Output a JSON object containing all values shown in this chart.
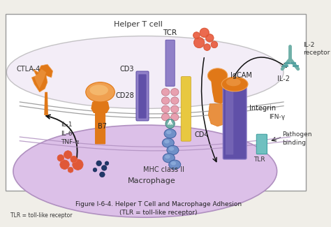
{
  "title": "Figure I-6-4. Helper T Cell and Macrophage Adhesion\n(TLR = toll-like receptor)",
  "tlr_note": "TLR = toll-like receptor",
  "bg_color": "#f0eee8",
  "border_color": "#aaaaaa",
  "helper_t_label": "Helper T cell",
  "macrophage_label": "Macrophage",
  "labels": {
    "CTLA4": "CTLA-4",
    "CD28": "CD28",
    "IL1": "IL-1\nIL-6\nTNF-α",
    "B7": "B7",
    "TCR": "TCR",
    "CD3": "CD3",
    "CD4": "CD4",
    "MHC": "MHC class II",
    "IgCAM": "IgCAM",
    "Integrin": "Integrin",
    "IFNg": "IFN-γ",
    "IL2": "IL-2",
    "IL2R": "IL-2\nreceptor",
    "TLR": "TLR",
    "PathogenBinding": "Pathogen\nbinding"
  },
  "colors": {
    "orange": "#E07818",
    "orange_light": "#F0A050",
    "orange_mid": "#E89040",
    "purple": "#6050A8",
    "purple_light": "#9080C8",
    "blue": "#4060A0",
    "blue_light": "#7090C8",
    "blue_mid": "#5070B0",
    "pink": "#E8A0B0",
    "pink_light": "#F0C0C8",
    "teal": "#70B0A8",
    "teal_light": "#90C8C0",
    "yellow": "#E8C840",
    "macrophage_fill": "#DCC0E8",
    "helper_fill": "#E8DCF0",
    "tlr_cyan": "#70C0C0",
    "dots_orange": "#D05030",
    "dots_blue": "#203868",
    "membrane_gray": "#909090",
    "membrane_purple": "#B090C0"
  }
}
